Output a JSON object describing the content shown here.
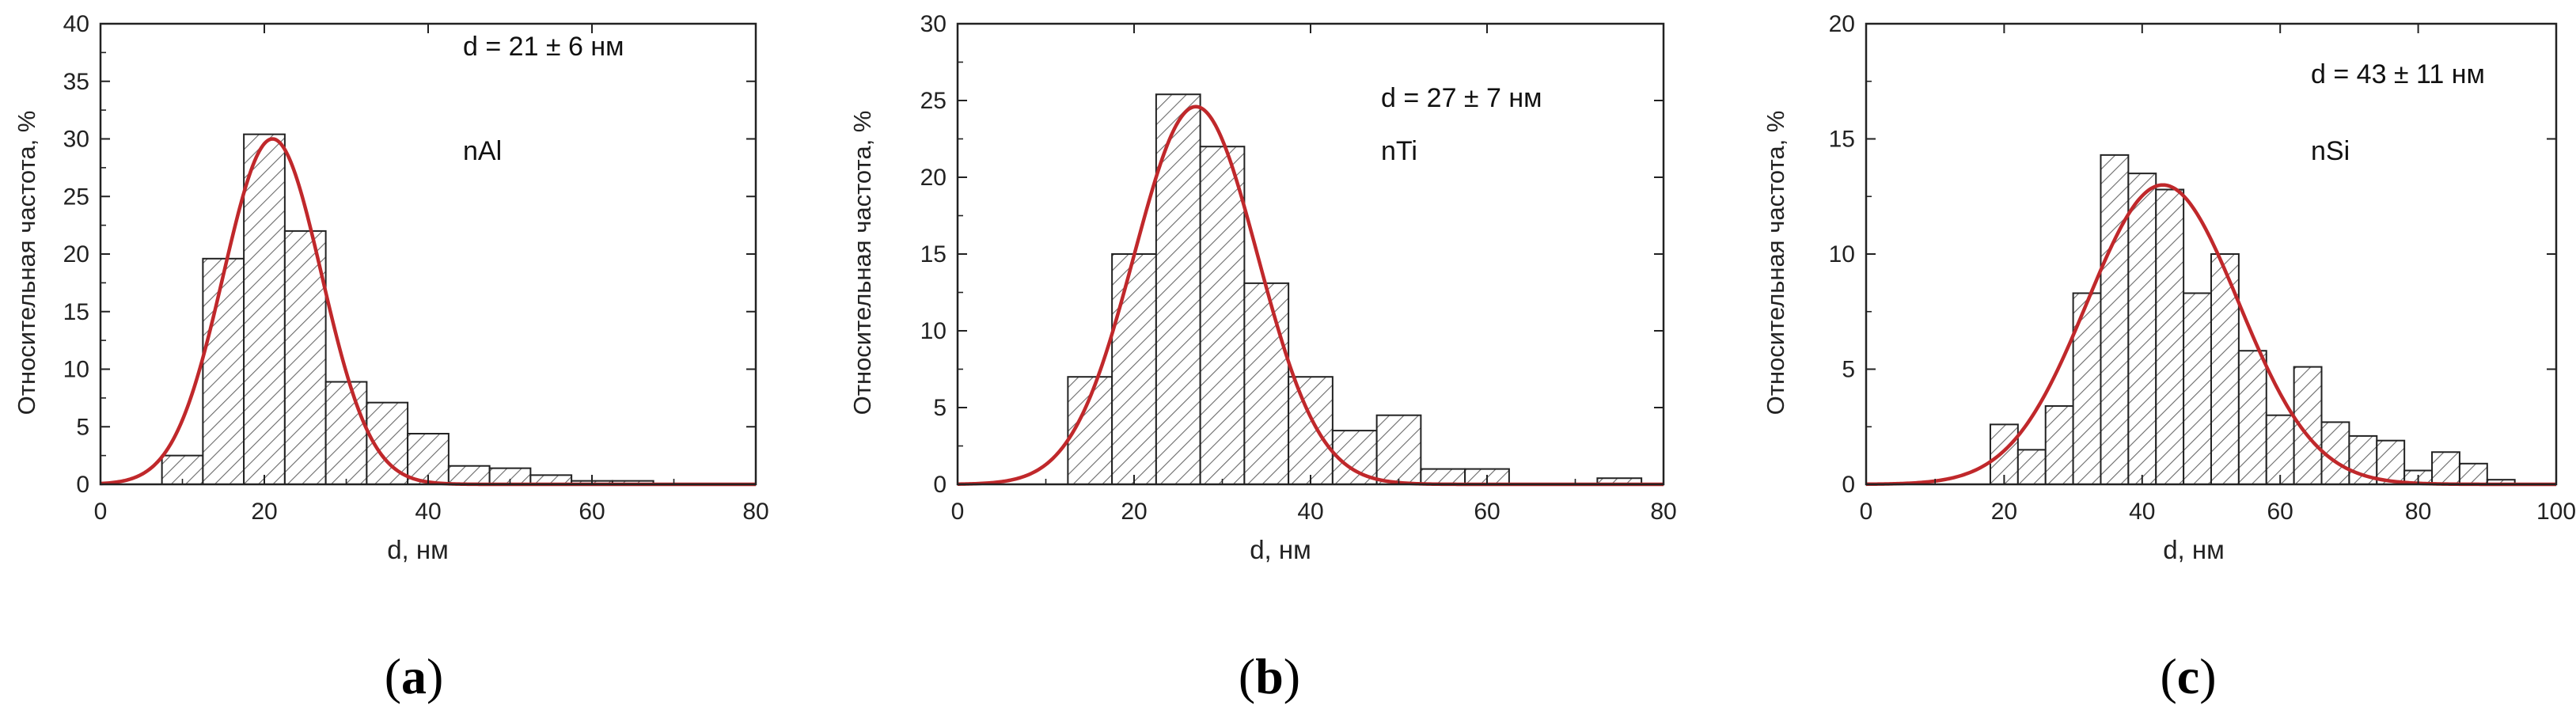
{
  "colors": {
    "fit_curve": "#c0282b",
    "bar_edge": "#222222",
    "hatch": "#666666",
    "axis": "#222222"
  },
  "chart_data": [
    {
      "type": "bar",
      "panel": "(a)",
      "sub_label_prefix": "(",
      "sub_label_letter": "a",
      "sub_label_suffix": ")",
      "xlabel": "d, нм",
      "ylabel": "Относительная частота, %",
      "xlim": [
        0,
        80
      ],
      "ylim": [
        0,
        40
      ],
      "xticks": [
        0,
        20,
        40,
        60,
        80
      ],
      "yticks": [
        0,
        5,
        10,
        15,
        20,
        25,
        30,
        35,
        40
      ],
      "bin_width": 5,
      "bin_left_edges": [
        7.5,
        12.5,
        17.5,
        22.5,
        27.5,
        32.5,
        37.5,
        42.5,
        47.5,
        52.5,
        57.5,
        62.5
      ],
      "values": [
        2.5,
        19.6,
        30.4,
        22.0,
        8.9,
        7.1,
        4.4,
        1.6,
        1.4,
        0.8,
        0.3,
        0.3
      ],
      "fit": {
        "type": "gaussian",
        "mean": 21,
        "sigma": 6,
        "peak": 30
      },
      "annotations": [
        "d = 21 ± 6 нм",
        "nAl"
      ]
    },
    {
      "type": "bar",
      "panel": "(b)",
      "sub_label_prefix": "(",
      "sub_label_letter": "b",
      "sub_label_suffix": ")",
      "xlabel": "d, нм",
      "ylabel": "Относительная частота, %",
      "xlim": [
        0,
        80
      ],
      "ylim": [
        0,
        30
      ],
      "xticks": [
        0,
        20,
        40,
        60,
        80
      ],
      "yticks": [
        0,
        5,
        10,
        15,
        20,
        25,
        30
      ],
      "bin_width": 5,
      "bin_left_edges": [
        12.5,
        17.5,
        22.5,
        27.5,
        32.5,
        37.5,
        42.5,
        47.5,
        52.5,
        57.5,
        72.5
      ],
      "values": [
        7.0,
        15.0,
        25.4,
        22.0,
        13.1,
        7.0,
        3.5,
        4.5,
        1.0,
        1.0,
        0.4
      ],
      "fit": {
        "type": "gaussian",
        "mean": 27,
        "sigma": 7,
        "peak": 24.6
      },
      "annotations": [
        "d = 27 ± 7 нм",
        "nTi"
      ]
    },
    {
      "type": "bar",
      "panel": "(c)",
      "sub_label_prefix": "(",
      "sub_label_letter": "c",
      "sub_label_suffix": ")",
      "xlabel": "d, нм",
      "ylabel": "Относительная частота, %",
      "xlim": [
        0,
        100
      ],
      "ylim": [
        0,
        20
      ],
      "xticks": [
        0,
        20,
        40,
        60,
        80,
        100
      ],
      "yticks": [
        0,
        5,
        10,
        15,
        20
      ],
      "bin_width": 4,
      "bin_left_edges": [
        18,
        22,
        26,
        30,
        34,
        38,
        42,
        46,
        50,
        54,
        58,
        62,
        66,
        70,
        74,
        78,
        82,
        86,
        90
      ],
      "values": [
        2.6,
        1.5,
        3.4,
        8.3,
        14.3,
        13.5,
        12.8,
        8.3,
        10.0,
        5.8,
        3.0,
        5.1,
        2.7,
        2.1,
        1.9,
        0.6,
        1.4,
        0.9,
        0.2
      ],
      "fit": {
        "type": "gaussian",
        "mean": 43,
        "sigma": 11,
        "peak": 13.0
      },
      "annotations": [
        "d = 43 ± 11 нм",
        "nSi"
      ]
    }
  ]
}
